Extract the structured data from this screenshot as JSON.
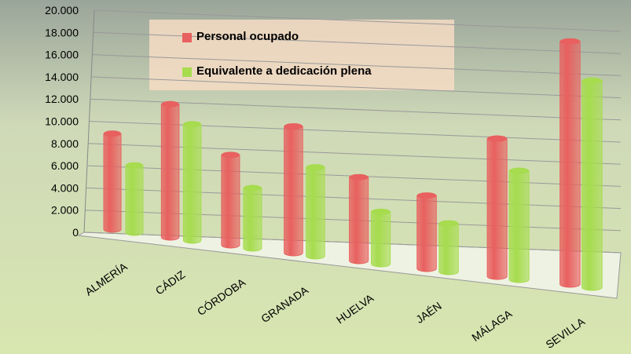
{
  "chart_data": {
    "type": "bar3d",
    "categories": [
      "ALMERÍA",
      "CÁDIZ",
      "CÓRDOBA",
      "GRANADA",
      "HUELVA",
      "JAÉN",
      "MÁLAGA",
      "SEVILLA"
    ],
    "series": [
      {
        "name": "Personal ocupado",
        "color": "#e8605f",
        "values": [
          8700,
          11800,
          7800,
          10700,
          6900,
          5900,
          10900,
          18800
        ]
      },
      {
        "name": "Equivalente a dedicación plena",
        "color": "#a6dc4e",
        "values": [
          6100,
          10300,
          5200,
          7500,
          4300,
          3900,
          8600,
          16000
        ]
      }
    ],
    "ylim": [
      0,
      20000
    ],
    "yticks": [
      0,
      {
        "value": 2000,
        "label": "2.000"
      },
      {
        "value": 4000,
        "label": "4.000"
      },
      {
        "value": 6000,
        "label": "6.000"
      },
      {
        "value": 8000,
        "label": "8.000"
      },
      {
        "value": 10000,
        "label": "10.000"
      },
      {
        "value": 12000,
        "label": "12.000"
      },
      {
        "value": 14000,
        "label": "14.000"
      },
      {
        "value": 16000,
        "label": "16.000"
      },
      {
        "value": 18000,
        "label": "18.000"
      },
      {
        "value": 20000,
        "label": "20.000"
      }
    ],
    "grid": true,
    "legend": "top"
  }
}
